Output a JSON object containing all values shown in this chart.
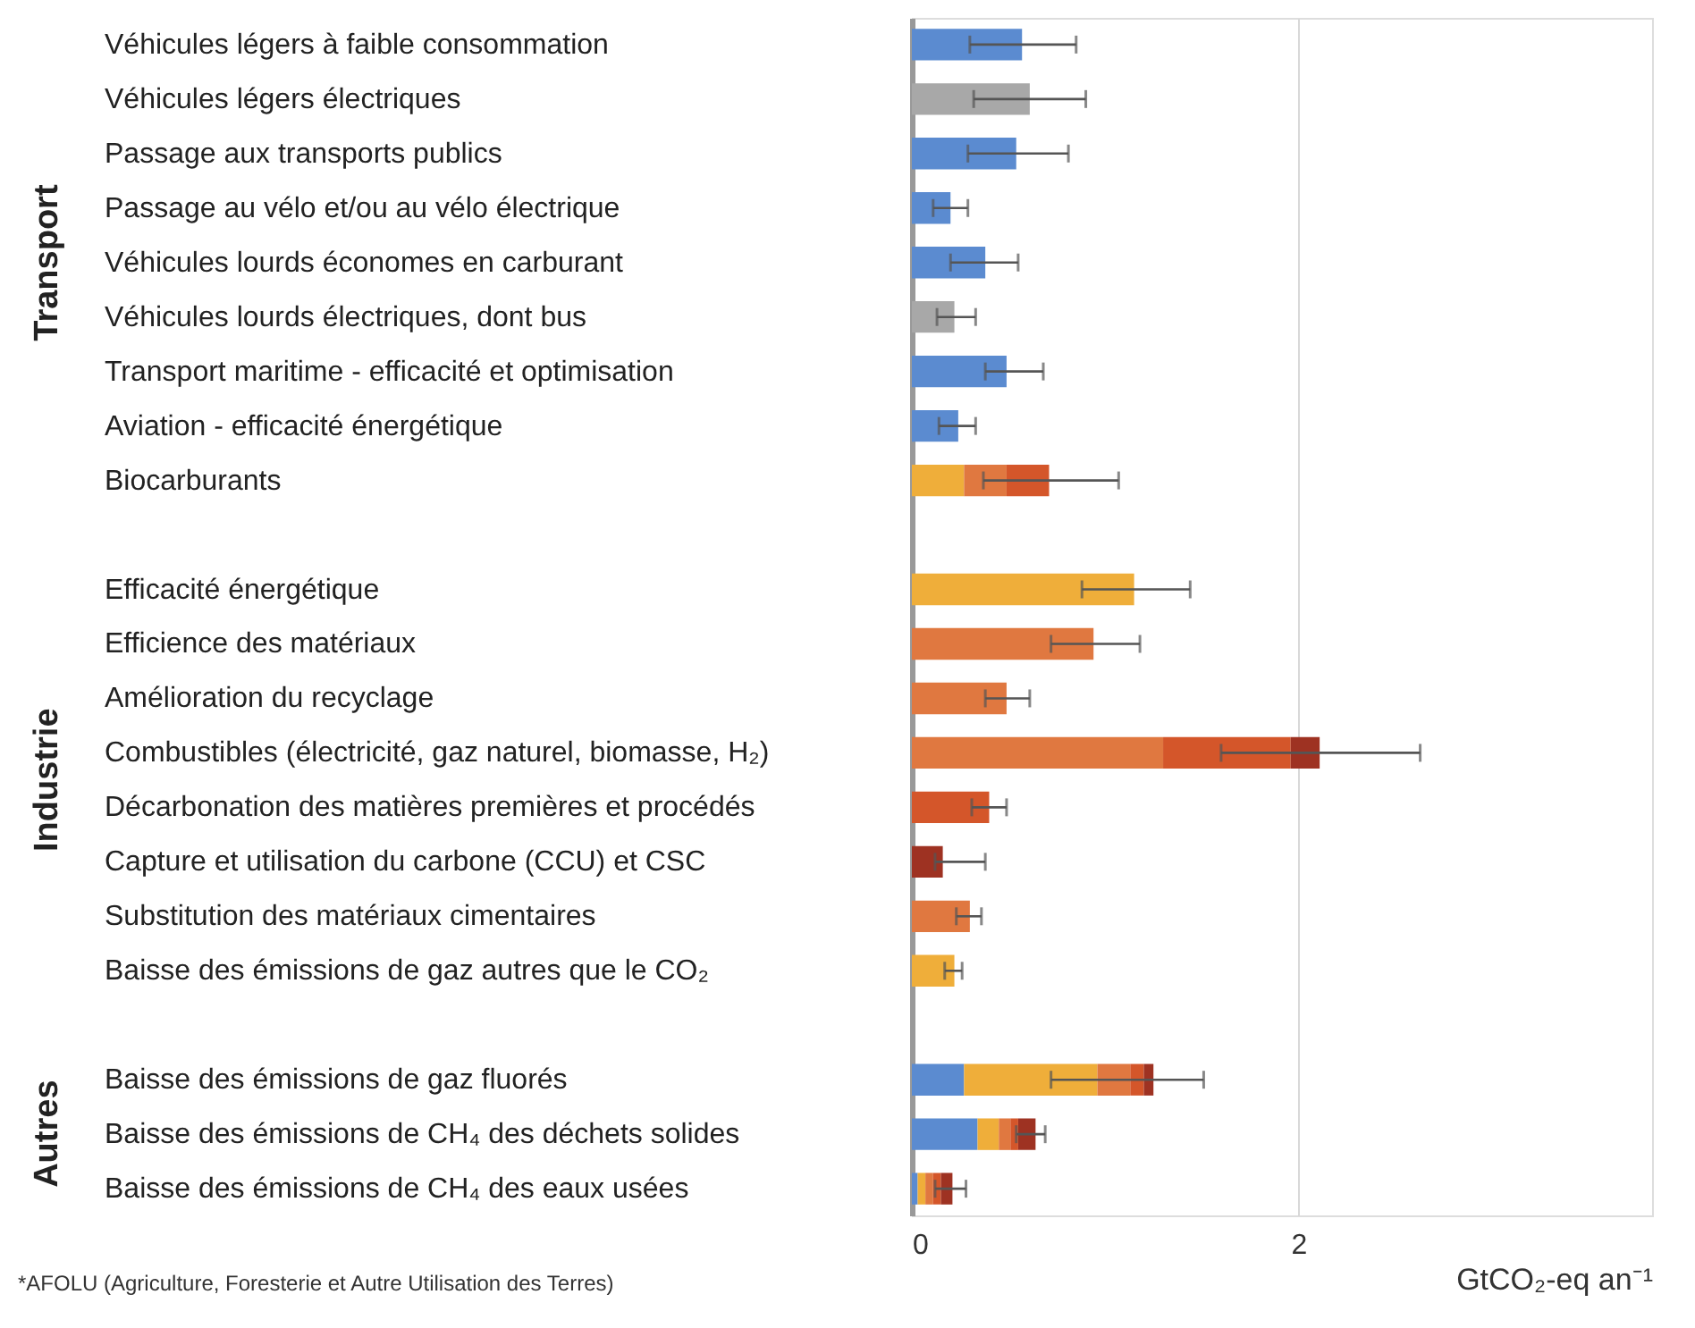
{
  "chart_data": {
    "type": "bar",
    "orientation": "horizontal",
    "stacked": true,
    "categories": [
      "Véhicules légers à faible consommation",
      "Véhicules légers électriques",
      "Passage aux transports publics",
      "Passage au vélo et/ou au vélo électrique",
      "Véhicules lourds économes en carburant",
      "Véhicules lourds électriques, dont bus",
      "Transport maritime - efficacité et optimisation",
      "Aviation - efficacité énergétique",
      "Biocarburants",
      null,
      "Efficacité énergétique",
      "Efficience des matériaux",
      "Amélioration du recyclage",
      "Combustibles (électricité, gaz naturel, biomasse, H₂)",
      "Décarbonation des matières premières et procédés",
      "Capture et utilisation du carbone (CCU) et CSC",
      "Substitution des matériaux cimentaires",
      "Baisse des émissions de gaz autres que le CO₂",
      null,
      "Baisse des émissions de gaz fluorés",
      "Baisse des émissions de CH₄ des déchets solides",
      "Baisse des émissions de CH₄ des eaux usées"
    ],
    "series": [
      {
        "color": "#5b8bd0",
        "values": [
          0.57,
          null,
          0.54,
          0.2,
          0.38,
          null,
          0.49,
          0.24,
          null,
          null,
          null,
          null,
          null,
          null,
          null,
          null,
          null,
          null,
          null,
          0.27,
          0.34,
          0.03
        ],
        "errors": [
          [
            0.3,
            0.85
          ],
          null,
          [
            0.29,
            0.81
          ],
          [
            0.11,
            0.29
          ],
          [
            0.2,
            0.55
          ],
          null,
          [
            0.38,
            0.68
          ],
          [
            0.14,
            0.33
          ],
          null,
          null,
          null,
          null,
          null,
          null,
          null,
          null,
          null,
          null,
          null,
          null,
          null,
          null
        ]
      },
      {
        "color": "#a8a8a8",
        "values": [
          null,
          0.61,
          null,
          null,
          null,
          0.22,
          null,
          null,
          null,
          null,
          null,
          null,
          null,
          null,
          null,
          null,
          null,
          null,
          null,
          null,
          null,
          null
        ],
        "errors": [
          null,
          [
            0.32,
            0.9
          ],
          null,
          null,
          null,
          [
            0.13,
            0.33
          ],
          null,
          null,
          null,
          null,
          null,
          null,
          null,
          null,
          null,
          null,
          null,
          null,
          null,
          null,
          null,
          null
        ]
      },
      {
        "color": "#efae3a",
        "values": [
          null,
          null,
          null,
          null,
          null,
          null,
          null,
          null,
          0.27,
          null,
          1.15,
          null,
          null,
          null,
          null,
          null,
          null,
          0.22,
          null,
          0.69,
          0.11,
          0.04
        ],
        "errors": [
          null,
          null,
          null,
          null,
          null,
          null,
          null,
          null,
          null,
          null,
          [
            0.88,
            1.44
          ],
          null,
          null,
          null,
          null,
          null,
          null,
          [
            0.17,
            0.26
          ],
          null,
          null,
          null,
          null
        ]
      },
      {
        "color": "#e07840",
        "values": [
          null,
          null,
          null,
          null,
          null,
          null,
          null,
          null,
          0.22,
          null,
          null,
          0.94,
          0.49,
          1.3,
          null,
          null,
          0.3,
          null,
          null,
          0.17,
          0.06,
          0.04
        ],
        "errors": [
          null,
          null,
          null,
          null,
          null,
          null,
          null,
          null,
          null,
          null,
          null,
          [
            0.72,
            1.18
          ],
          [
            0.38,
            0.61
          ],
          null,
          null,
          null,
          [
            0.23,
            0.36
          ],
          null,
          null,
          null,
          null,
          null
        ]
      },
      {
        "color": "#d4562a",
        "values": [
          null,
          null,
          null,
          null,
          null,
          null,
          null,
          null,
          0.22,
          null,
          null,
          null,
          null,
          0.66,
          0.4,
          null,
          null,
          null,
          null,
          0.07,
          0.04,
          0.04
        ],
        "errors": [
          null,
          null,
          null,
          null,
          null,
          null,
          null,
          null,
          [
            0.37,
            1.07
          ],
          null,
          null,
          null,
          null,
          null,
          [
            0.31,
            0.49
          ],
          null,
          null,
          null,
          null,
          null,
          null,
          null
        ]
      },
      {
        "color": "#9e3222",
        "values": [
          null,
          null,
          null,
          null,
          null,
          null,
          null,
          null,
          null,
          null,
          null,
          null,
          null,
          0.15,
          null,
          0.16,
          null,
          null,
          null,
          0.05,
          0.09,
          0.06
        ],
        "errors": [
          null,
          null,
          null,
          null,
          null,
          null,
          null,
          null,
          null,
          null,
          null,
          null,
          null,
          [
            1.6,
            2.63
          ],
          null,
          [
            0.12,
            0.38
          ],
          null,
          null,
          null,
          [
            0.72,
            1.51
          ],
          [
            0.54,
            0.69
          ],
          [
            0.12,
            0.28
          ]
        ]
      }
    ],
    "xlim": [
      0,
      3.83
    ],
    "xticks": [
      0,
      2
    ],
    "xlabel": "GtCO₂-eq an⁻¹",
    "grid": "x",
    "annotations": [
      "Transport",
      "Industrie",
      "Autres",
      "*AFOLU (Agriculture, Foresterie et Autre Utilisation des Terres)"
    ]
  }
}
